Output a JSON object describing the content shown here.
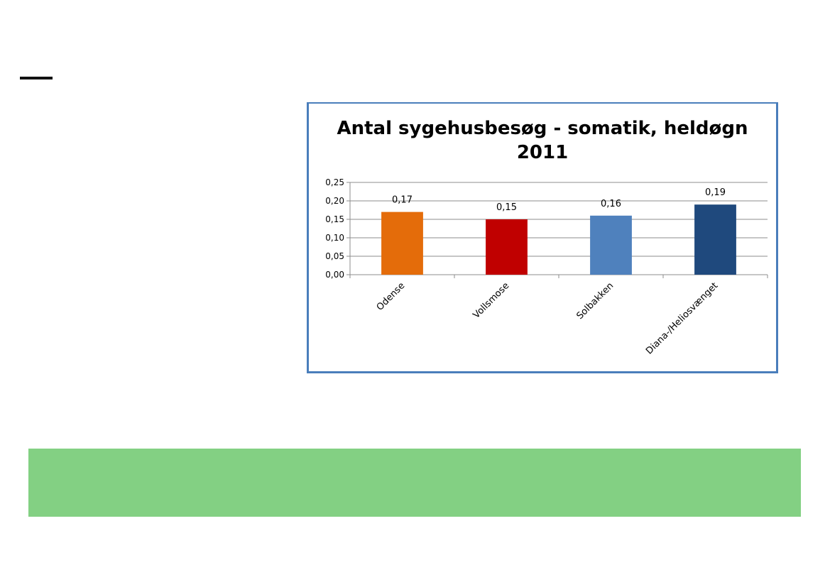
{
  "chart_data": {
    "type": "bar",
    "title_lines": [
      "Antal sygehusbesøg - somatik, heldøgn",
      "2011"
    ],
    "categories": [
      "Odense",
      "Vollsmose",
      "Solbakken",
      "Diana-/Heliosvænget"
    ],
    "values": [
      0.17,
      0.15,
      0.16,
      0.19
    ],
    "data_labels": [
      "0,17",
      "0,15",
      "0,16",
      "0,19"
    ],
    "bar_colors": [
      "#e46c0a",
      "#c00000",
      "#4f81bd",
      "#1f497d"
    ],
    "ylim": [
      0,
      0.25
    ],
    "yticks": [
      0,
      0.05,
      0.1,
      0.15,
      0.2,
      0.25
    ],
    "ytick_labels": [
      "0,00",
      "0,05",
      "0,10",
      "0,15",
      "0,20",
      "0,25"
    ],
    "grid": true,
    "legend": "none",
    "xlabel": "",
    "ylabel": ""
  },
  "colors": {
    "frame_border": "#4a7ebb",
    "band": "#83d083"
  }
}
